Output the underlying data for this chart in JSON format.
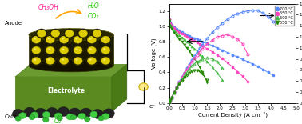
{
  "xlabel": "Current Density (A cm⁻²)",
  "ylabel_left": "Voltage (V)",
  "ylabel_right": "Power Density (W cm⁻²)",
  "xlim": [
    0,
    5.0
  ],
  "ylim_left": [
    0,
    1.3
  ],
  "ylim_right": [
    0,
    1.8
  ],
  "temperatures": [
    "700 °C",
    "650 °C",
    "600 °C",
    "550 °C"
  ],
  "colors": [
    "#5588ff",
    "#ff44bb",
    "#44bb44",
    "#228800"
  ],
  "voltage_data": {
    "700": {
      "x": [
        0.0,
        0.05,
        0.1,
        0.2,
        0.3,
        0.4,
        0.5,
        0.6,
        0.7,
        0.8,
        0.9,
        1.0,
        1.1,
        1.2,
        1.3,
        1.5,
        1.7,
        1.9,
        2.1,
        2.3,
        2.5,
        2.7,
        2.9,
        3.1,
        3.3,
        3.5,
        3.7,
        3.9,
        4.1
      ],
      "y": [
        1.1,
        1.05,
        1.02,
        0.99,
        0.97,
        0.95,
        0.93,
        0.91,
        0.89,
        0.88,
        0.86,
        0.85,
        0.83,
        0.82,
        0.8,
        0.78,
        0.75,
        0.72,
        0.69,
        0.66,
        0.63,
        0.6,
        0.57,
        0.54,
        0.51,
        0.48,
        0.44,
        0.4,
        0.36
      ]
    },
    "650": {
      "x": [
        0.0,
        0.05,
        0.1,
        0.2,
        0.3,
        0.4,
        0.5,
        0.6,
        0.7,
        0.8,
        0.9,
        1.0,
        1.1,
        1.2,
        1.3,
        1.5,
        1.7,
        1.9,
        2.1,
        2.3,
        2.5,
        2.7,
        2.9,
        3.1
      ],
      "y": [
        1.1,
        1.04,
        1.01,
        0.98,
        0.95,
        0.93,
        0.91,
        0.89,
        0.87,
        0.85,
        0.83,
        0.81,
        0.79,
        0.77,
        0.75,
        0.71,
        0.67,
        0.63,
        0.58,
        0.53,
        0.47,
        0.41,
        0.35,
        0.28
      ]
    },
    "600": {
      "x": [
        0.0,
        0.05,
        0.1,
        0.2,
        0.3,
        0.4,
        0.5,
        0.6,
        0.7,
        0.8,
        0.9,
        1.0,
        1.1,
        1.2,
        1.3,
        1.5,
        1.7,
        1.9,
        2.1
      ],
      "y": [
        1.09,
        1.02,
        0.99,
        0.95,
        0.92,
        0.89,
        0.86,
        0.83,
        0.8,
        0.77,
        0.74,
        0.71,
        0.68,
        0.64,
        0.61,
        0.54,
        0.47,
        0.39,
        0.3
      ]
    },
    "550": {
      "x": [
        0.0,
        0.05,
        0.1,
        0.2,
        0.3,
        0.4,
        0.5,
        0.6,
        0.7,
        0.8,
        0.9,
        1.0,
        1.1,
        1.2,
        1.3,
        1.5
      ],
      "y": [
        1.08,
        1.0,
        0.97,
        0.92,
        0.88,
        0.84,
        0.8,
        0.76,
        0.72,
        0.68,
        0.63,
        0.58,
        0.53,
        0.47,
        0.41,
        0.27
      ]
    }
  },
  "power_data": {
    "700": {
      "x": [
        0.0,
        0.05,
        0.1,
        0.2,
        0.3,
        0.4,
        0.5,
        0.6,
        0.7,
        0.8,
        0.9,
        1.0,
        1.1,
        1.2,
        1.3,
        1.5,
        1.7,
        1.9,
        2.1,
        2.3,
        2.5,
        2.7,
        2.9,
        3.1,
        3.3,
        3.5,
        3.7,
        3.9,
        4.1
      ],
      "y": [
        0.0,
        0.05,
        0.1,
        0.2,
        0.29,
        0.38,
        0.47,
        0.55,
        0.63,
        0.7,
        0.78,
        0.85,
        0.92,
        0.99,
        1.05,
        1.17,
        1.28,
        1.37,
        1.45,
        1.52,
        1.58,
        1.62,
        1.65,
        1.67,
        1.68,
        1.68,
        1.63,
        1.56,
        1.48
      ]
    },
    "650": {
      "x": [
        0.0,
        0.05,
        0.1,
        0.2,
        0.3,
        0.4,
        0.5,
        0.6,
        0.7,
        0.8,
        0.9,
        1.0,
        1.1,
        1.2,
        1.3,
        1.5,
        1.7,
        1.9,
        2.1,
        2.3,
        2.5,
        2.7,
        2.9,
        3.1
      ],
      "y": [
        0.0,
        0.05,
        0.1,
        0.2,
        0.29,
        0.37,
        0.46,
        0.54,
        0.61,
        0.68,
        0.75,
        0.81,
        0.87,
        0.93,
        0.98,
        1.07,
        1.14,
        1.2,
        1.22,
        1.24,
        1.2,
        1.16,
        1.07,
        0.88
      ]
    },
    "600": {
      "x": [
        0.0,
        0.05,
        0.1,
        0.2,
        0.3,
        0.4,
        0.5,
        0.6,
        0.7,
        0.8,
        0.9,
        1.0,
        1.1,
        1.2,
        1.3,
        1.5,
        1.7,
        1.9,
        2.1
      ],
      "y": [
        0.0,
        0.05,
        0.1,
        0.19,
        0.28,
        0.36,
        0.43,
        0.5,
        0.56,
        0.62,
        0.67,
        0.71,
        0.75,
        0.77,
        0.8,
        0.82,
        0.8,
        0.75,
        0.63
      ]
    },
    "550": {
      "x": [
        0.0,
        0.05,
        0.1,
        0.2,
        0.3,
        0.4,
        0.5,
        0.6,
        0.7,
        0.8,
        0.9,
        1.0,
        1.1,
        1.2,
        1.3,
        1.5
      ],
      "y": [
        0.0,
        0.05,
        0.1,
        0.19,
        0.27,
        0.34,
        0.4,
        0.46,
        0.51,
        0.55,
        0.57,
        0.59,
        0.59,
        0.57,
        0.53,
        0.41
      ]
    }
  },
  "marker_voltage": [
    "o",
    "o",
    "^",
    "v"
  ],
  "marker_power": [
    "o",
    "o",
    "^",
    "v"
  ],
  "temp_keys": [
    "700",
    "650",
    "600",
    "550"
  ],
  "xticks": [
    0.0,
    0.5,
    1.0,
    1.5,
    2.0,
    2.5,
    3.0,
    3.5,
    4.0,
    4.5,
    5.0
  ],
  "yticks_left": [
    0.0,
    0.2,
    0.4,
    0.6,
    0.8,
    1.0,
    1.2
  ],
  "yticks_right": [
    0.0,
    0.2,
    0.4,
    0.6,
    0.8,
    1.0,
    1.2,
    1.4,
    1.6,
    1.8
  ]
}
